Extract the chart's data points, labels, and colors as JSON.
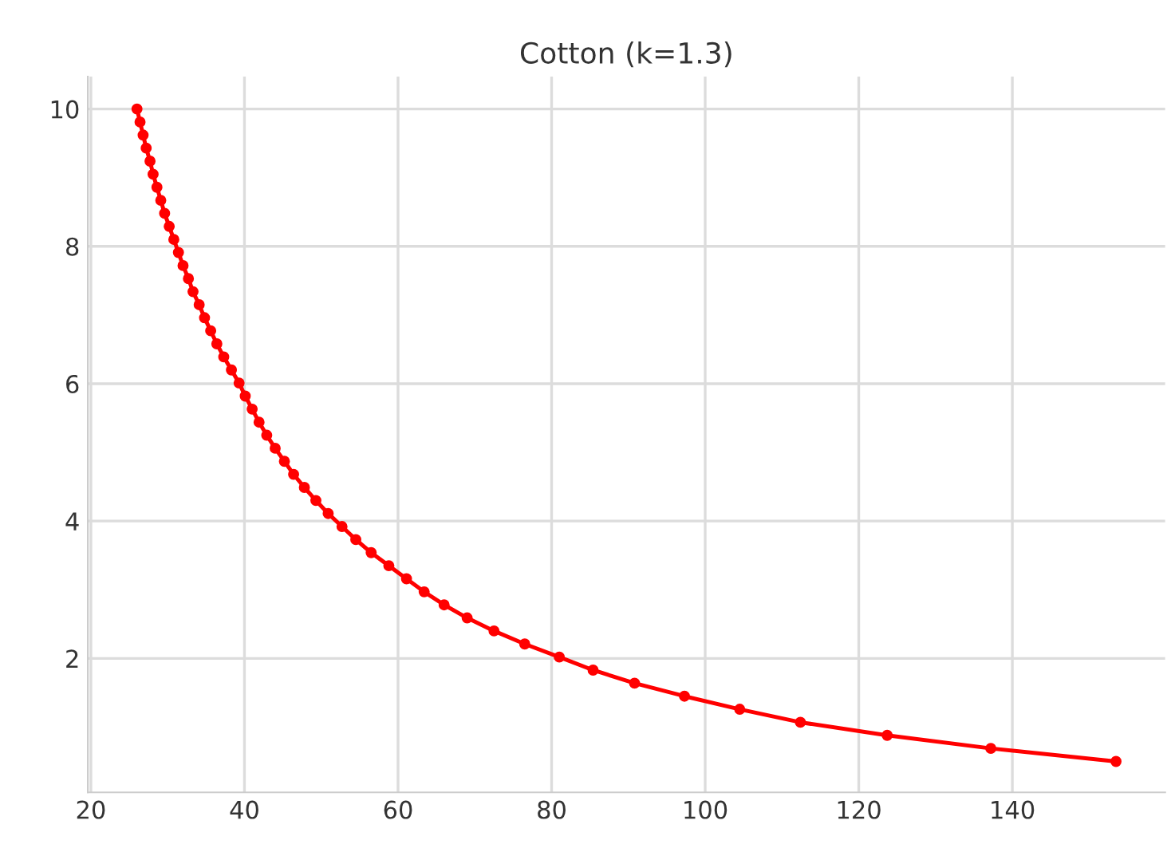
{
  "chart_data": {
    "type": "line",
    "title": "Cotton (k=1.3)",
    "x": [
      26.0,
      26.4,
      26.8,
      27.2,
      27.7,
      28.1,
      28.6,
      29.1,
      29.6,
      30.2,
      30.8,
      31.4,
      32.0,
      32.7,
      33.3,
      34.1,
      34.8,
      35.6,
      36.4,
      37.3,
      38.3,
      39.3,
      40.1,
      41.0,
      41.9,
      42.9,
      44.0,
      45.2,
      46.4,
      47.8,
      49.3,
      50.9,
      52.7,
      54.5,
      56.5,
      58.8,
      61.1,
      63.4,
      66.0,
      69.0,
      72.5,
      76.5,
      81.0,
      85.4,
      90.8,
      97.3,
      104.5,
      112.4,
      123.7,
      137.2,
      153.5
    ],
    "series": [
      {
        "color": "#ff0000",
        "values": [
          10.0,
          9.81,
          9.62,
          9.43,
          9.24,
          9.05,
          8.86,
          8.67,
          8.48,
          8.29,
          8.1,
          7.91,
          7.72,
          7.53,
          7.34,
          7.15,
          6.96,
          6.77,
          6.58,
          6.39,
          6.2,
          6.01,
          5.82,
          5.63,
          5.44,
          5.25,
          5.06,
          4.87,
          4.68,
          4.49,
          4.3,
          4.11,
          3.92,
          3.73,
          3.54,
          3.35,
          3.16,
          2.97,
          2.78,
          2.59,
          2.4,
          2.21,
          2.02,
          1.83,
          1.64,
          1.45,
          1.26,
          1.07,
          0.88,
          0.69,
          0.5
        ]
      }
    ],
    "xlim": [
      19.6,
      159.9
    ],
    "ylim": [
      0.05,
      10.47
    ],
    "xticks": [
      20,
      40,
      60,
      80,
      100,
      120,
      140
    ],
    "yticks": [
      2,
      4,
      6,
      8,
      10
    ],
    "grid": true,
    "marker": "circle",
    "line_style": "solid"
  }
}
